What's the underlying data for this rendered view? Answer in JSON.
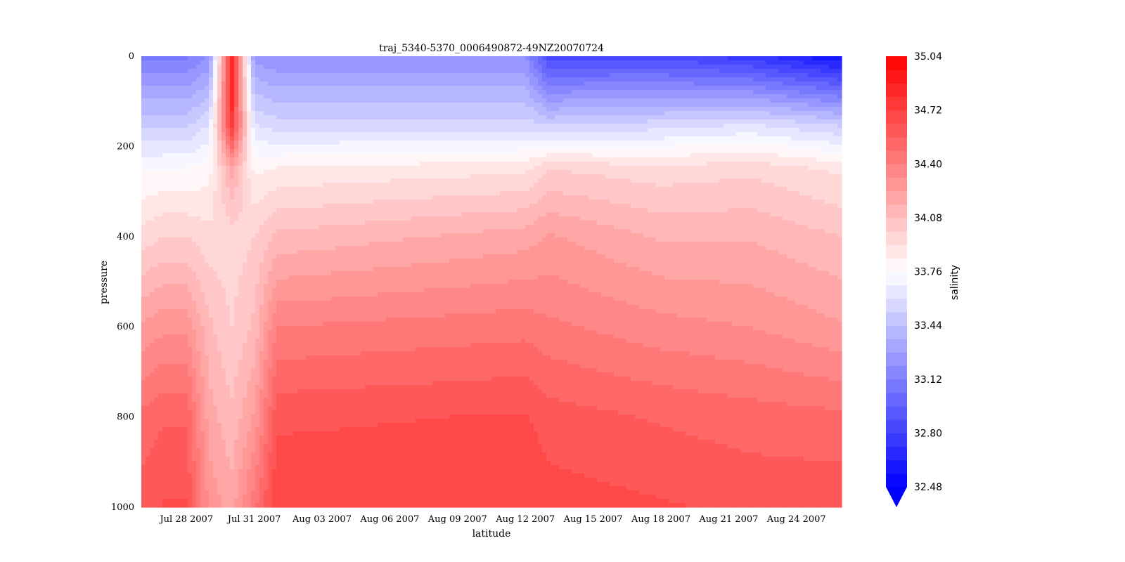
{
  "chart_data": {
    "type": "heatmap",
    "title": "traj_5340-5370_0006490872-49NZ20070724",
    "xlabel": "latitude",
    "ylabel": "pressure",
    "x_ticks": [
      "Jul 28 2007",
      "Jul 31 2007",
      "Aug 03 2007",
      "Aug 06 2007",
      "Aug 09 2007",
      "Aug 12 2007",
      "Aug 15 2007",
      "Aug 18 2007",
      "Aug 21 2007",
      "Aug 24 2007"
    ],
    "x_range": [
      "2007-07-26",
      "2007-08-26"
    ],
    "y_ticks": [
      "0",
      "200",
      "400",
      "600",
      "800",
      "1000"
    ],
    "ylim": [
      1000,
      0
    ],
    "colorbar": {
      "label": "salinity",
      "ticks": [
        "35.04",
        "34.72",
        "34.40",
        "34.08",
        "33.76",
        "33.44",
        "33.12",
        "32.80",
        "32.48"
      ],
      "range": [
        32.48,
        35.04
      ],
      "extend": "min",
      "colormap": "bwr",
      "levels": 32
    },
    "grid": false,
    "colors": {
      "low": "#0000ff",
      "mid": "#ffffff",
      "high": "#ff0000"
    },
    "profiles": [
      {
        "date": "2007-07-26",
        "anchors": [
          [
            0,
            33.1
          ],
          [
            150,
            33.5
          ],
          [
            250,
            33.75
          ],
          [
            400,
            33.95
          ],
          [
            600,
            34.25
          ],
          [
            800,
            34.5
          ],
          [
            1000,
            34.6
          ]
        ]
      },
      {
        "date": "2007-07-27",
        "anchors": [
          [
            0,
            33.1
          ],
          [
            150,
            33.5
          ],
          [
            250,
            33.76
          ],
          [
            400,
            34.0
          ],
          [
            600,
            34.3
          ],
          [
            800,
            34.55
          ],
          [
            1000,
            34.65
          ]
        ]
      },
      {
        "date": "2007-07-28",
        "anchors": [
          [
            0,
            33.1
          ],
          [
            150,
            33.5
          ],
          [
            250,
            33.76
          ],
          [
            400,
            34.0
          ],
          [
            600,
            34.3
          ],
          [
            800,
            34.55
          ],
          [
            1000,
            34.65
          ]
        ]
      },
      {
        "date": "2007-07-29",
        "anchors": [
          [
            0,
            33.2
          ],
          [
            150,
            33.6
          ],
          [
            250,
            33.8
          ],
          [
            400,
            33.95
          ],
          [
            600,
            34.1
          ],
          [
            800,
            34.2
          ],
          [
            1000,
            34.3
          ]
        ]
      },
      {
        "date": "2007-07-30",
        "anchors": [
          [
            0,
            34.9
          ],
          [
            150,
            34.8
          ],
          [
            250,
            34.2
          ],
          [
            400,
            33.95
          ],
          [
            600,
            34.0
          ],
          [
            800,
            34.1
          ],
          [
            1000,
            34.2
          ]
        ]
      },
      {
        "date": "2007-07-31",
        "anchors": [
          [
            0,
            33.25
          ],
          [
            150,
            33.6
          ],
          [
            250,
            33.82
          ],
          [
            400,
            34.0
          ],
          [
            600,
            34.1
          ],
          [
            800,
            34.25
          ],
          [
            1000,
            34.45
          ]
        ]
      },
      {
        "date": "2007-08-01",
        "anchors": [
          [
            0,
            33.2
          ],
          [
            150,
            33.55
          ],
          [
            250,
            33.85
          ],
          [
            400,
            34.1
          ],
          [
            600,
            34.4
          ],
          [
            800,
            34.62
          ],
          [
            1000,
            34.72
          ]
        ]
      },
      {
        "date": "2007-08-12",
        "anchors": [
          [
            0,
            33.2
          ],
          [
            150,
            33.55
          ],
          [
            250,
            33.9
          ],
          [
            400,
            34.2
          ],
          [
            600,
            34.45
          ],
          [
            800,
            34.65
          ],
          [
            1000,
            34.72
          ]
        ]
      },
      {
        "date": "2007-08-13",
        "anchors": [
          [
            0,
            32.85
          ],
          [
            150,
            33.5
          ],
          [
            250,
            34.0
          ],
          [
            400,
            34.25
          ],
          [
            600,
            34.42
          ],
          [
            800,
            34.6
          ],
          [
            1000,
            34.68
          ]
        ]
      },
      {
        "date": "2007-08-18",
        "anchors": [
          [
            0,
            32.85
          ],
          [
            150,
            33.55
          ],
          [
            250,
            33.95
          ],
          [
            400,
            34.15
          ],
          [
            600,
            34.35
          ],
          [
            800,
            34.55
          ],
          [
            1000,
            34.65
          ]
        ]
      },
      {
        "date": "2007-08-22",
        "anchors": [
          [
            0,
            32.75
          ],
          [
            150,
            33.6
          ],
          [
            250,
            33.98
          ],
          [
            400,
            34.15
          ],
          [
            600,
            34.32
          ],
          [
            800,
            34.52
          ],
          [
            1000,
            34.62
          ]
        ]
      },
      {
        "date": "2007-08-26",
        "anchors": [
          [
            0,
            32.55
          ],
          [
            150,
            33.5
          ],
          [
            250,
            33.9
          ],
          [
            400,
            34.08
          ],
          [
            600,
            34.25
          ],
          [
            800,
            34.5
          ],
          [
            1000,
            34.62
          ]
        ]
      }
    ]
  }
}
